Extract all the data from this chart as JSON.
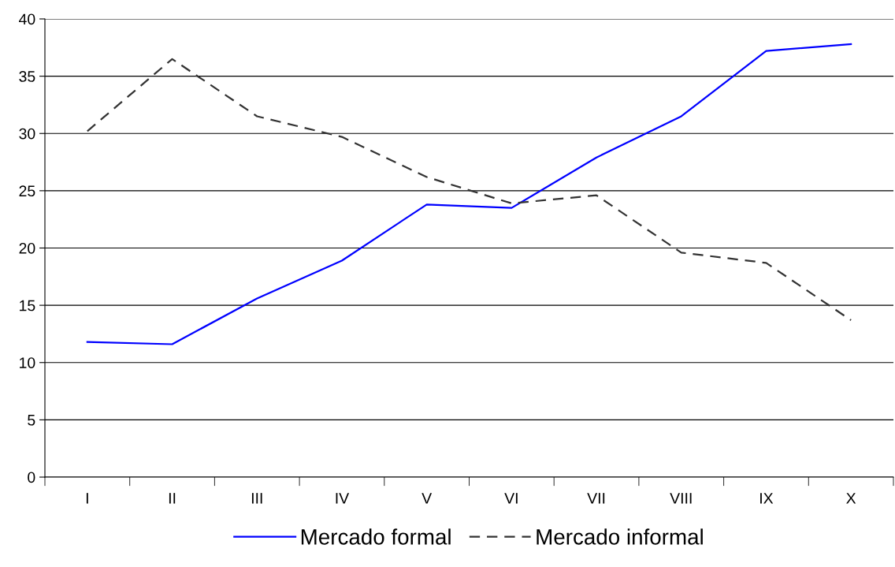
{
  "chart_data": {
    "type": "line",
    "categories": [
      "I",
      "II",
      "III",
      "IV",
      "V",
      "VI",
      "VII",
      "VIII",
      "IX",
      "X"
    ],
    "series": [
      {
        "name": "Mercado formal",
        "color": "#0000ff",
        "line_style": "solid",
        "values": [
          11.8,
          11.6,
          15.6,
          18.9,
          23.8,
          23.5,
          27.9,
          31.5,
          37.2,
          37.8
        ]
      },
      {
        "name": "Mercado informal",
        "color": "#333333",
        "line_style": "dashed",
        "values": [
          30.2,
          36.5,
          31.5,
          29.7,
          26.2,
          23.9,
          24.6,
          19.6,
          18.7,
          13.7
        ]
      }
    ],
    "ylim": [
      0,
      40
    ],
    "yticks": [
      0,
      5,
      10,
      15,
      20,
      25,
      30,
      35,
      40
    ],
    "grid": "y",
    "legend": "bottom",
    "marker": "none"
  }
}
